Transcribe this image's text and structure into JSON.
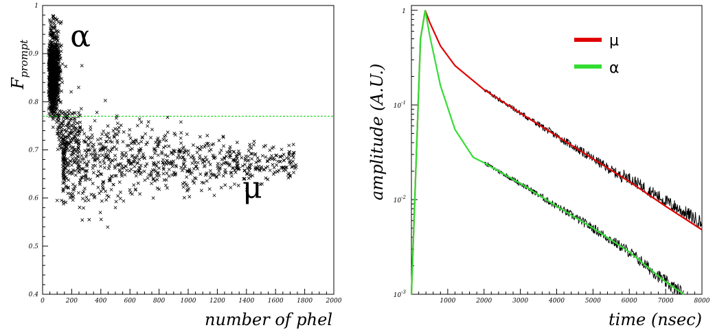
{
  "chart_data": [
    {
      "type": "scatter",
      "xlabel": "number of phel",
      "ylabel_main": "F",
      "ylabel_sub": "prompt",
      "xlim": [
        0,
        2000
      ],
      "ylim": [
        0.4,
        1.0
      ],
      "xticks": [
        "0",
        "200",
        "400",
        "600",
        "800",
        "1000",
        "1200",
        "1400",
        "1600",
        "1800",
        "2000"
      ],
      "yticks": [
        "0.4",
        "0.5",
        "0.6",
        "0.7",
        "0.8",
        "0.9",
        "1"
      ],
      "cut_line": {
        "y": 0.77,
        "color": "#00cc00"
      },
      "annotations": [
        {
          "text": "α",
          "x": 260,
          "y": 0.935
        },
        {
          "text": "μ",
          "x": 1440,
          "y": 0.62
        }
      ],
      "populations": [
        {
          "label": "α",
          "x_range": [
            40,
            140
          ],
          "y_center": 0.86,
          "y_spread": 0.06,
          "n": 1100
        },
        {
          "label": "μ",
          "x_range": [
            140,
            1750
          ],
          "y_center": 0.675,
          "y_spread": 0.04,
          "n": 900
        }
      ],
      "marker_color": "#000000"
    },
    {
      "type": "line",
      "xlabel": "time (nsec)",
      "ylabel": "amplitude (A.U.)",
      "xlim": [
        0,
        8000
      ],
      "ylim": [
        0.001,
        1
      ],
      "yscale": "log",
      "xticks": [
        "1000",
        "2000",
        "3000",
        "4000",
        "5000",
        "6000",
        "7000",
        "8000"
      ],
      "yticks": [
        {
          "base": "10",
          "exp": "-3",
          "value": 0.001
        },
        {
          "base": "10",
          "exp": "-2",
          "value": 0.01
        },
        {
          "base": "10",
          "exp": "-1",
          "value": 0.1
        },
        {
          "base": "1",
          "exp": "",
          "value": 1
        }
      ],
      "legend_position": "top-right",
      "series": [
        {
          "name": "μ",
          "color": "#e00000",
          "x": [
            0,
            250,
            380,
            500,
            800,
            1200,
            2000,
            3000,
            4000,
            5000,
            6000,
            7000,
            8000
          ],
          "y": [
            0.001,
            0.5,
            1.0,
            0.75,
            0.42,
            0.26,
            0.145,
            0.082,
            0.047,
            0.027,
            0.0155,
            0.0085,
            0.0048
          ]
        },
        {
          "name": "α",
          "color": "#33dd33",
          "x": [
            0,
            250,
            380,
            500,
            800,
            1200,
            1700,
            2000,
            3000,
            4000,
            5000,
            6000,
            7000,
            7500
          ],
          "y": [
            0.001,
            0.5,
            1.0,
            0.55,
            0.16,
            0.055,
            0.028,
            0.0245,
            0.0148,
            0.0085,
            0.005,
            0.0028,
            0.00135,
            0.001
          ]
        }
      ]
    }
  ]
}
